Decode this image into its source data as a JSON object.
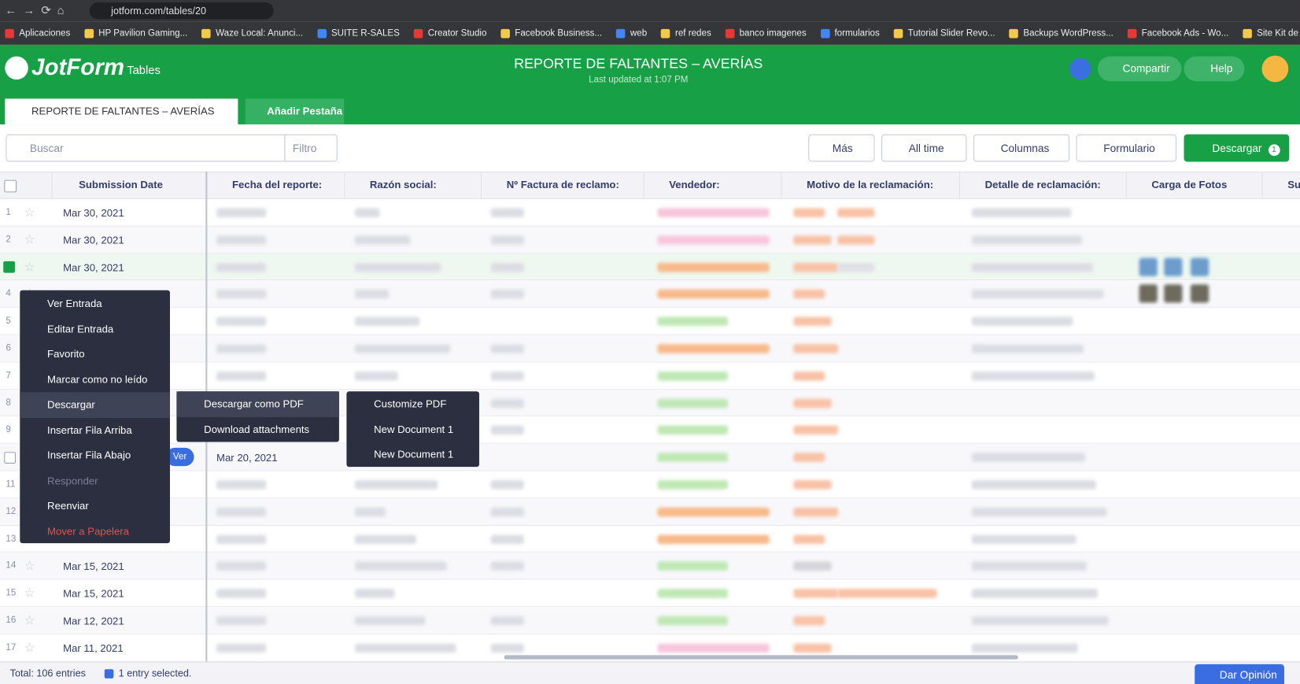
{
  "browser": {
    "url": "jotform.com/tables/20",
    "bookmarks": [
      "Aplicaciones",
      "HP Pavilion Gaming...",
      "Waze Local: Anunci...",
      "SUITE R-SALES",
      "Creator Studio",
      "Facebook Business...",
      "web",
      "ref redes",
      "banco imagenes",
      "formularios",
      "Tutorial Slider Revo...",
      "Backups WordPress...",
      "Facebook Ads - Wo...",
      "Site Kit de Google..."
    ]
  },
  "header": {
    "logo": "JotForm",
    "tables": "Tables",
    "title": "REPORTE DE FALTANTES – AVERÍAS",
    "subtitle": "Last updated at 1:07 PM",
    "share": "Compartir",
    "help": "Help"
  },
  "tabs": {
    "active": "REPORTE DE FALTANTES – AVERÍAS",
    "add": "Añadir Pestaña"
  },
  "toolbar": {
    "search": "Buscar",
    "filter": "Filtro",
    "more": "Más",
    "time": "All time",
    "columns": "Columnas",
    "form": "Formulario",
    "download": "Descargar",
    "badge": "1"
  },
  "table": {
    "columns": [
      "Submission Date",
      "Fecha del reporte:",
      "Razón social:",
      "Nº Factura de reclamo:",
      "Vendedor:",
      "Motivo de la reclamación:",
      "Detalle de reclamación:",
      "Carga de Fotos",
      "Su"
    ],
    "rows": [
      {
        "n": 1,
        "date": "Mar 30, 2021"
      },
      {
        "n": 2,
        "date": "Mar 30, 2021"
      },
      {
        "n": 3,
        "date": "Mar 30, 2021"
      },
      {
        "n": 4
      },
      {
        "n": 5
      },
      {
        "n": 6
      },
      {
        "n": 7
      },
      {
        "n": 8
      },
      {
        "n": 9
      },
      {
        "view": "Ver",
        "report_date": "Mar 20, 2021"
      },
      {
        "n": 11
      },
      {
        "n": 12
      },
      {
        "n": 13
      },
      {
        "n": 14,
        "date": "Mar 15, 2021"
      },
      {
        "n": 15,
        "date": "Mar 15, 2021"
      },
      {
        "n": 16,
        "date": "Mar 12, 2021"
      },
      {
        "n": 17,
        "date": "Mar 11, 2021"
      }
    ]
  },
  "context_menu": {
    "items": [
      "Ver Entrada",
      "Editar Entrada",
      "Favorito",
      "Marcar como no leído",
      "Descargar",
      "Insertar Fila Arriba",
      "Insertar Fila Abajo",
      "Responder",
      "Reenviar",
      "Mover a Papelera"
    ],
    "submenu": [
      "Descargar como PDF",
      "Download attachments"
    ],
    "subsubmenu": [
      "Customize PDF",
      "New Document 1",
      "New Document 1"
    ]
  },
  "footer": {
    "total": "Total: 106 entries",
    "selected": "1 entry selected.",
    "feedback": "Dar Opinión"
  }
}
